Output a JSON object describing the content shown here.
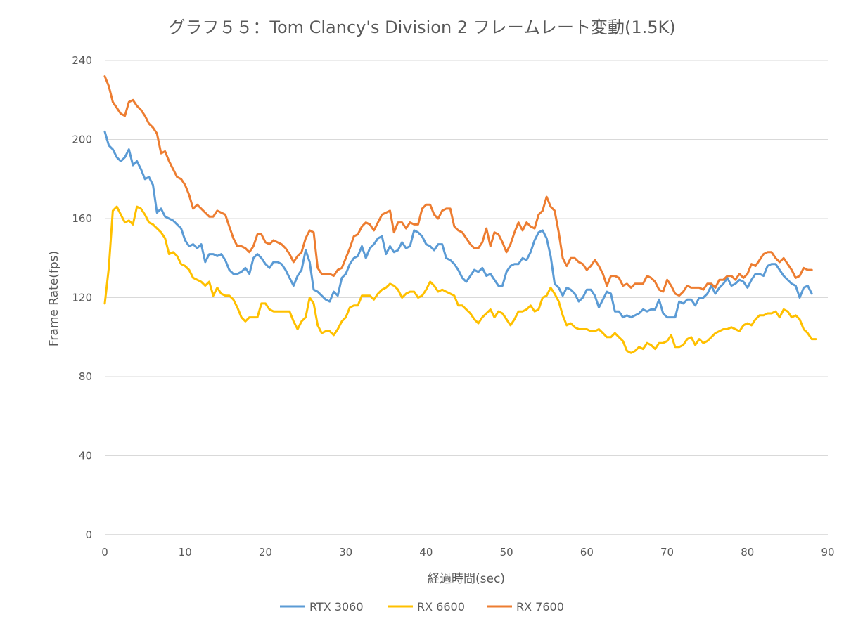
{
  "chart_data": {
    "type": "line",
    "title": "グラフ５５：Tom Clancy's Division 2 フレームレート変動(1.5K)",
    "xlabel": "経過時間(sec)",
    "ylabel": "Frame Rate(fps)",
    "xlim": [
      0,
      90
    ],
    "ylim": [
      0,
      240
    ],
    "x_ticks": [
      0,
      10,
      20,
      30,
      40,
      50,
      60,
      70,
      80,
      90
    ],
    "y_ticks": [
      0,
      40,
      80,
      120,
      160,
      200,
      240
    ],
    "grid": true,
    "legend_position": "bottom",
    "x_step": 0.5,
    "series": [
      {
        "name": "RTX 3060",
        "color": "#5b9bd5",
        "values": [
          204,
          197,
          195,
          191,
          189,
          191,
          195,
          187,
          189,
          185,
          180,
          181,
          177,
          163,
          165,
          161,
          160,
          159,
          157,
          155,
          149,
          146,
          147,
          145,
          147,
          138,
          142,
          142,
          141,
          142,
          139,
          134,
          132,
          132,
          133,
          135,
          132,
          140,
          142,
          140,
          137,
          135,
          138,
          138,
          137,
          134,
          130,
          126,
          131,
          134,
          144,
          138,
          124,
          123,
          121,
          119,
          118,
          123,
          121,
          130,
          132,
          137,
          140,
          141,
          146,
          140,
          145,
          147,
          150,
          151,
          142,
          146,
          143,
          144,
          148,
          145,
          146,
          154,
          153,
          151,
          147,
          146,
          144,
          147,
          147,
          140,
          139,
          137,
          134,
          130,
          128,
          131,
          134,
          133,
          135,
          131,
          132,
          129,
          126,
          126,
          133,
          136,
          137,
          137,
          140,
          139,
          143,
          149,
          153,
          154,
          150,
          141,
          127,
          125,
          121,
          125,
          124,
          122,
          118,
          120,
          124,
          124,
          121,
          115,
          119,
          123,
          122,
          113,
          113,
          110,
          111,
          110,
          111,
          112,
          114,
          113,
          114,
          114,
          119,
          112,
          110,
          110,
          110,
          118,
          117,
          119,
          119,
          116,
          120,
          120,
          122,
          126,
          122,
          125,
          127,
          130,
          126,
          127,
          129,
          128,
          125,
          129,
          132,
          132,
          131,
          136,
          137,
          137,
          134,
          131,
          129,
          127,
          126,
          120,
          125,
          126,
          122
        ]
      },
      {
        "name": "RX 6600",
        "color": "#ffc000",
        "values": [
          117,
          135,
          164,
          166,
          162,
          158,
          159,
          157,
          166,
          165,
          162,
          158,
          157,
          155,
          153,
          150,
          142,
          143,
          141,
          137,
          136,
          134,
          130,
          129,
          128,
          126,
          128,
          121,
          125,
          122,
          121,
          121,
          119,
          115,
          110,
          108,
          110,
          110,
          110,
          117,
          117,
          114,
          113,
          113,
          113,
          113,
          113,
          108,
          104,
          108,
          110,
          120,
          117,
          106,
          102,
          103,
          103,
          101,
          104,
          108,
          110,
          115,
          116,
          116,
          121,
          121,
          121,
          119,
          122,
          124,
          125,
          127,
          126,
          124,
          120,
          122,
          123,
          123,
          120,
          121,
          124,
          128,
          126,
          123,
          124,
          123,
          122,
          121,
          116,
          116,
          114,
          112,
          109,
          107,
          110,
          112,
          114,
          110,
          113,
          112,
          109,
          106,
          109,
          113,
          113,
          114,
          116,
          113,
          114,
          120,
          121,
          125,
          122,
          118,
          111,
          106,
          107,
          105,
          104,
          104,
          104,
          103,
          103,
          104,
          102,
          100,
          100,
          102,
          100,
          98,
          93,
          92,
          93,
          95,
          94,
          97,
          96,
          94,
          97,
          97,
          98,
          101,
          95,
          95,
          96,
          99,
          100,
          96,
          99,
          97,
          98,
          100,
          102,
          103,
          104,
          104,
          105,
          104,
          103,
          106,
          107,
          106,
          109,
          111,
          111,
          112,
          112,
          113,
          110,
          114,
          113,
          110,
          111,
          109,
          104,
          102,
          99,
          99
        ]
      },
      {
        "name": "RX 7600",
        "color": "#ed7d31",
        "values": [
          232,
          227,
          219,
          216,
          213,
          212,
          219,
          220,
          217,
          215,
          212,
          208,
          206,
          203,
          193,
          194,
          189,
          185,
          181,
          180,
          177,
          172,
          165,
          167,
          165,
          163,
          161,
          161,
          164,
          163,
          162,
          156,
          150,
          146,
          146,
          145,
          143,
          146,
          152,
          152,
          148,
          147,
          149,
          148,
          147,
          145,
          142,
          138,
          141,
          143,
          150,
          154,
          153,
          135,
          132,
          132,
          132,
          131,
          134,
          135,
          140,
          145,
          151,
          152,
          156,
          158,
          157,
          154,
          158,
          162,
          163,
          164,
          153,
          158,
          158,
          155,
          158,
          157,
          157,
          165,
          167,
          167,
          162,
          160,
          164,
          165,
          165,
          156,
          154,
          153,
          150,
          147,
          145,
          145,
          148,
          155,
          146,
          153,
          152,
          148,
          143,
          147,
          153,
          158,
          154,
          158,
          156,
          155,
          162,
          164,
          171,
          166,
          164,
          153,
          140,
          136,
          140,
          140,
          138,
          137,
          134,
          136,
          139,
          136,
          132,
          126,
          131,
          131,
          130,
          126,
          127,
          125,
          127,
          127,
          127,
          131,
          130,
          128,
          124,
          123,
          129,
          126,
          122,
          121,
          123,
          126,
          125,
          125,
          125,
          124,
          127,
          127,
          125,
          129,
          129,
          131,
          131,
          129,
          132,
          130,
          132,
          137,
          136,
          139,
          142,
          143,
          143,
          140,
          138,
          140,
          137,
          134,
          130,
          131,
          135,
          134,
          134
        ]
      }
    ]
  }
}
